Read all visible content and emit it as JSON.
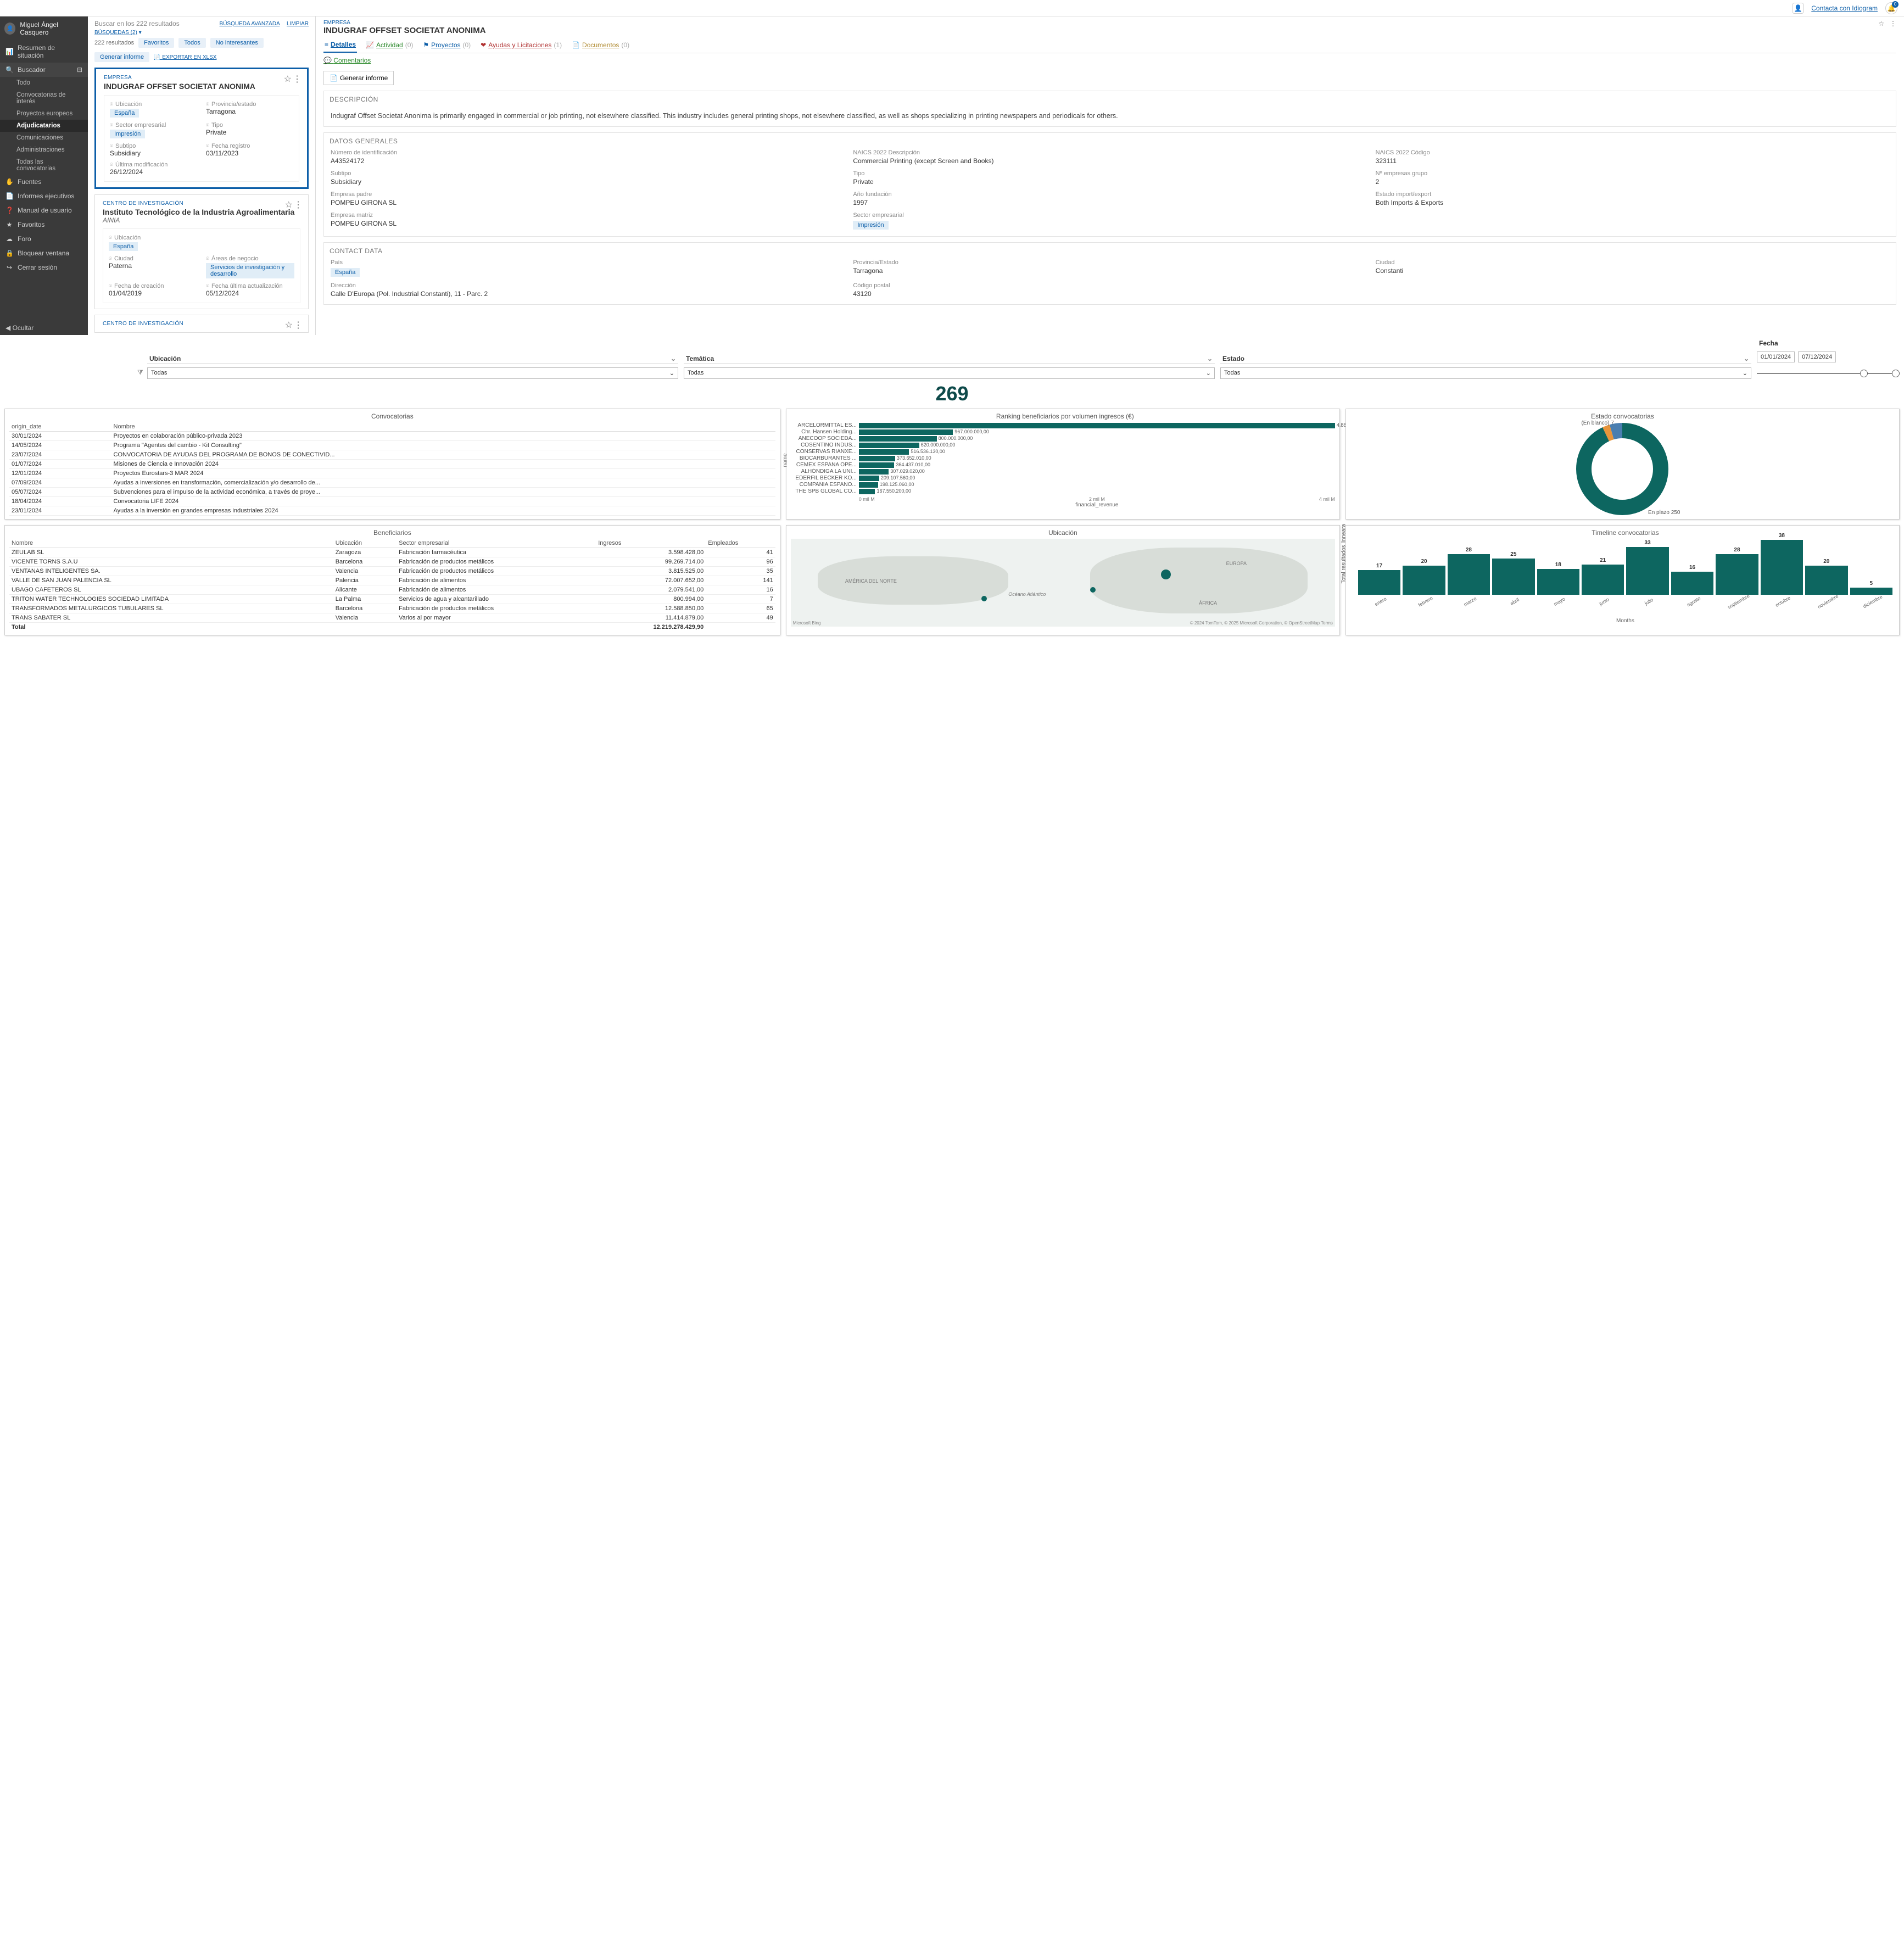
{
  "topbar": {
    "contact": "Contacta con Idiogram",
    "bell_count": "0"
  },
  "user": {
    "name": "Miguel Ángel Casquero"
  },
  "sidebar": {
    "resumen": "Resumen de situación",
    "buscador": "Buscador",
    "subs": [
      {
        "label": "Todo"
      },
      {
        "label": "Convocatorias de interés"
      },
      {
        "label": "Proyectos europeos"
      },
      {
        "label": "Adjudicatarios",
        "active": true
      },
      {
        "label": "Comunicaciones"
      },
      {
        "label": "Administraciones"
      },
      {
        "label": "Todas las convocatorias"
      }
    ],
    "others": [
      {
        "icon": "✋",
        "label": "Fuentes"
      },
      {
        "icon": "📄",
        "label": "Informes ejecutivos"
      },
      {
        "icon": "❓",
        "label": "Manual de usuario"
      },
      {
        "icon": "★",
        "label": "Favoritos"
      },
      {
        "icon": "☁",
        "label": "Foro"
      },
      {
        "icon": "🔒",
        "label": "Bloquear ventana"
      },
      {
        "icon": "↪",
        "label": "Cerrar sesión"
      }
    ],
    "ocultar": "Ocultar"
  },
  "searchpanel": {
    "placeholder": "Buscar en los 222 resultados",
    "adv": "BÚSQUEDA AVANZADA",
    "clear": "LIMPIAR",
    "searches": "BÚSQUEDAS (2)",
    "count": "222 resultados",
    "filters": {
      "fav": "Favoritos",
      "todos": "Todos",
      "noint": "No interesantes",
      "gen": "Generar informe"
    },
    "export": "EXPORTAR EN XLSX"
  },
  "results": [
    {
      "kind": "EMPRESA",
      "selected": true,
      "title": "INDUGRAF OFFSET SOCIETAT ANONIMA",
      "fields": [
        {
          "label": "Ubicación",
          "tag": "España"
        },
        {
          "label": "Provincia/estado",
          "value": "Tarragona"
        },
        {
          "label": "Sector empresarial",
          "tag": "Impresión"
        },
        {
          "label": "Tipo",
          "value": "Private"
        },
        {
          "label": "Subtipo",
          "value": "Subsidiary"
        },
        {
          "label": "Fecha registro",
          "value": "03/11/2023"
        },
        {
          "label": "Última modificación",
          "value": "26/12/2024"
        }
      ]
    },
    {
      "kind": "CENTRO DE INVESTIGACIÓN",
      "title": "Instituto Tecnológico de la Industria Agroalimentaria",
      "subtitle": "AINIA",
      "fields": [
        {
          "label": "Ubicación",
          "tag": "España"
        },
        {
          "label": "",
          "value": ""
        },
        {
          "label": "Ciudad",
          "value": "Paterna"
        },
        {
          "label": "Áreas de negocio",
          "tag": "Servicios de investigación y desarrollo"
        },
        {
          "label": "Fecha de creación",
          "value": "01/04/2019"
        },
        {
          "label": "Fecha última actualización",
          "value": "05/12/2024"
        }
      ]
    },
    {
      "kind": "CENTRO DE INVESTIGACIÓN",
      "truncated": true
    }
  ],
  "detail": {
    "kind": "EMPRESA",
    "title": "INDUGRAF OFFSET SOCIETAT ANONIMA",
    "tabs": [
      {
        "icon": "≡",
        "label": "Detalles",
        "active": true,
        "color": "#0c5ea8"
      },
      {
        "icon": "📈",
        "label": "Actividad",
        "count": "(0)",
        "color": "#2e8b2e"
      },
      {
        "icon": "⚑",
        "label": "Proyectos",
        "count": "(0)",
        "color": "#0c5ea8"
      },
      {
        "icon": "❤",
        "label": "Ayudas y Licitaciones",
        "count": "(1)",
        "color": "#b03030"
      },
      {
        "icon": "📄",
        "label": "Documentos",
        "count": "(0)",
        "color": "#b08a30"
      }
    ],
    "comments": "Comentarios",
    "gen": "Generar informe",
    "desc_h": "DESCRIPCIÓN",
    "desc": "Indugraf Offset Societat Anonima is primarily engaged in commercial or job printing, not elsewhere classified. This industry includes general printing shops, not elsewhere classified, as well as shops specializing in printing newspapers and periodicals for others.",
    "datos_h": "DATOS GENERALES",
    "datos": [
      {
        "k": "Número de identificación",
        "v": "A43524172"
      },
      {
        "k": "NAICS 2022 Descripción",
        "v": "Commercial Printing (except Screen and Books)"
      },
      {
        "k": "NAICS 2022 Código",
        "v": "323111"
      },
      {
        "k": "Subtipo",
        "v": "Subsidiary"
      },
      {
        "k": "Tipo",
        "v": "Private"
      },
      {
        "k": "Nº empresas grupo",
        "v": "2"
      },
      {
        "k": "Empresa padre",
        "v": "POMPEU GIRONA SL"
      },
      {
        "k": "Año fundación",
        "v": "1997"
      },
      {
        "k": "Estado import/export",
        "v": "Both Imports & Exports"
      },
      {
        "k": "Empresa matriz",
        "v": "POMPEU GIRONA SL"
      },
      {
        "k": "Sector empresarial",
        "v": "Impresión",
        "tag": true
      }
    ],
    "contact_h": "CONTACT DATA",
    "contact": [
      {
        "k": "País",
        "v": "España",
        "tag": true
      },
      {
        "k": "Provincia/Estado",
        "v": "Tarragona"
      },
      {
        "k": "Ciudad",
        "v": "Constanti"
      },
      {
        "k": "Dirección",
        "v": "Calle D'Europa (Pol. Industrial Constanti), 11 - Parc. 2"
      },
      {
        "k": "Código postal",
        "v": "43120"
      }
    ]
  },
  "dash": {
    "filters": {
      "ubic": "Ubicación",
      "tem": "Temática",
      "est": "Estado",
      "fecha": "Fecha",
      "all": "Todas",
      "d1": "01/01/2024",
      "d2": "07/12/2024"
    },
    "big": "269",
    "conv": {
      "title": "Convocatorias",
      "cols": [
        "origin_date",
        "Nombre"
      ],
      "rows": [
        [
          "30/01/2024",
          "Proyectos en colaboración público-privada 2023"
        ],
        [
          "14/05/2024",
          "Programa \"Agentes del cambio - Kit Consulting\""
        ],
        [
          "23/07/2024",
          "CONVOCATORIA DE AYUDAS DEL PROGRAMA DE BONOS DE CONECTIVID..."
        ],
        [
          "01/07/2024",
          "Misiones de Ciencia e Innovación 2024"
        ],
        [
          "12/01/2024",
          "Proyectos Eurostars-3 MAR 2024"
        ],
        [
          "07/09/2024",
          "Ayudas a inversiones en transformación, comercialización y/o desarrollo de..."
        ],
        [
          "05/07/2024",
          "Subvenciones para el impulso de la actividad económica, a través de proye..."
        ],
        [
          "18/04/2024",
          "Convocatoria LIFE 2024"
        ],
        [
          "23/01/2024",
          "Ayudas a la inversión en grandes empresas industriales 2024"
        ]
      ]
    },
    "ranking": {
      "title": "Ranking beneficiarios por volumen ingresos (€)",
      "xaxis_label": "financial_revenue",
      "yaxis_label": "name",
      "xticks": [
        "0 mil M",
        "2 mil M",
        "4 mil M"
      ],
      "max": 4887764200,
      "bar_color": "#0d6660",
      "rows": [
        {
          "name": "ARCELORMITTAL ES...",
          "val": 4887764200,
          "label": "4.887.764.200,00"
        },
        {
          "name": "Chr. Hansen Holding...",
          "val": 967000000,
          "label": "967.000.000,00"
        },
        {
          "name": "ANECOOP SOCIEDA...",
          "val": 800000000,
          "label": "800.000.000,00"
        },
        {
          "name": "COSENTINO INDUS...",
          "val": 620000000,
          "label": "620.000.000,00"
        },
        {
          "name": "CONSERVAS RIANXE...",
          "val": 516536130,
          "label": "516.536.130,00"
        },
        {
          "name": "BIOCARBURANTES ...",
          "val": 373652010,
          "label": "373.652.010,00"
        },
        {
          "name": "CEMEX ESPAÑA OPE...",
          "val": 364437010,
          "label": "364.437.010,00"
        },
        {
          "name": "ALHÓNDIGA LA UNI...",
          "val": 307029020,
          "label": "307.029.020,00"
        },
        {
          "name": "EDERFIL BECKER KO...",
          "val": 209107560,
          "label": "209.107.560,00"
        },
        {
          "name": "COMPAÑIA ESPAÑO...",
          "val": 198125060,
          "label": "198.125.060,00"
        },
        {
          "name": "THE SPB GLOBAL CO...",
          "val": 167550200,
          "label": "167.550.200,00"
        }
      ]
    },
    "estado": {
      "title": "Estado convocatorias",
      "segments": [
        {
          "label": "En plazo 250",
          "value": 250,
          "color": "#0d6660"
        },
        {
          "label": "(En blanco) 7",
          "value": 7,
          "color": "#e8953b"
        },
        {
          "label": "",
          "value": 12,
          "color": "#4a7eb0"
        }
      ]
    },
    "benef": {
      "title": "Beneficiarios",
      "cols": [
        "Nombre",
        "Ubicación",
        "Sector empresarial",
        "Ingresos",
        "Empleados"
      ],
      "rows": [
        [
          "ZEULAB SL",
          "Zaragoza",
          "Fabricación farmacéutica",
          "3.598.428,00",
          "41"
        ],
        [
          "VICENTE TORNS S.A.U",
          "Barcelona",
          "Fabricación de productos metálicos",
          "99.269.714,00",
          "96"
        ],
        [
          "VENTANAS INTELIGENTES SA.",
          "Valencia",
          "Fabricación de productos metálicos",
          "3.815.525,00",
          "35"
        ],
        [
          "VALLE DE SAN JUAN PALENCIA SL",
          "Palencia",
          "Fabricación de alimentos",
          "72.007.652,00",
          "141"
        ],
        [
          "UBAGO CAFETEROS SL",
          "Alicante",
          "Fabricación de alimentos",
          "2.079.541,00",
          "16"
        ],
        [
          "TRITON WATER TECHNOLOGIES SOCIEDAD LIMITADA",
          "La Palma",
          "Servicios de agua y alcantarillado",
          "800.994,00",
          "7"
        ],
        [
          "TRANSFORMADOS METALURGICOS TUBULARES SL",
          "Barcelona",
          "Fabricación de productos metálicos",
          "12.588.850,00",
          "65"
        ],
        [
          "TRANS SABATER SL",
          "Valencia",
          "Varios al por mayor",
          "11.414.879,00",
          "49"
        ]
      ],
      "total_label": "Total",
      "total_val": "12.219.278.429,90"
    },
    "mapa": {
      "title": "Ubicación",
      "labels": {
        "na": "AMÉRICA DEL NORTE",
        "eu": "EUROPA",
        "af": "ÁFRICA",
        "oc": "Océano Atlántico"
      },
      "credit_left": "Microsoft Bing",
      "credit_right": "© 2024 TomTom, © 2025 Microsoft Corporation, © OpenStreetMap Terms"
    },
    "timeline": {
      "title": "Timeline convocatorias",
      "xaxis_label": "Months",
      "yaxis_label": "Total resultados linneara",
      "bar_color": "#0d6660",
      "max": 38,
      "data": [
        {
          "m": "enero",
          "v": 17
        },
        {
          "m": "febrero",
          "v": 20
        },
        {
          "m": "marzo",
          "v": 28
        },
        {
          "m": "abril",
          "v": 25
        },
        {
          "m": "mayo",
          "v": 18
        },
        {
          "m": "junio",
          "v": 21
        },
        {
          "m": "julio",
          "v": 33
        },
        {
          "m": "agosto",
          "v": 16
        },
        {
          "m": "septiembre",
          "v": 28
        },
        {
          "m": "octubre",
          "v": 38
        },
        {
          "m": "noviembre",
          "v": 20
        },
        {
          "m": "diciembre",
          "v": 5
        }
      ]
    }
  }
}
